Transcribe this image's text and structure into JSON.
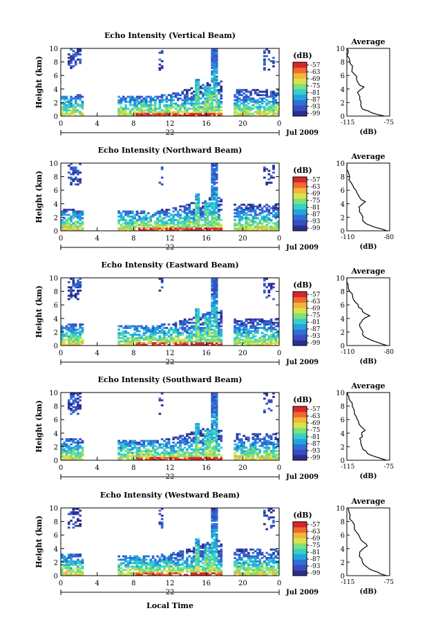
{
  "chart_data": [
    {
      "type": "heatmap",
      "title": "Echo Intensity (Vertical Beam)",
      "ylabel": "Height (km)",
      "y_ticks": [
        "0",
        "2",
        "4",
        "6",
        "8",
        "10"
      ],
      "x_ticks": [
        "0",
        "4",
        "8",
        "12",
        "16",
        "20",
        "0"
      ],
      "date_mid": "22",
      "date_label": "Jul 2009",
      "colorbar_title": "(dB)",
      "colorbar_ticks": [
        "-57",
        "-63",
        "-69",
        "-75",
        "-81",
        "-87",
        "-93",
        "-99"
      ],
      "avg_title": "Average",
      "avg_xticks": [
        "-115",
        "-75"
      ],
      "avg_xlabel": "(dB)",
      "avg_yticks": [
        "0",
        "2",
        "4",
        "6",
        "8",
        "10"
      ],
      "avg_xlim": [
        -115,
        -75
      ],
      "avg_profile": [
        [
          -80,
          0
        ],
        [
          -92,
          0.5
        ],
        [
          -100,
          1
        ],
        [
          -102,
          1.6
        ],
        [
          -103,
          2.5
        ],
        [
          -104,
          3.2
        ],
        [
          -103,
          3.8
        ],
        [
          -99,
          4.3
        ],
        [
          -104,
          4.8
        ],
        [
          -106,
          5.5
        ],
        [
          -108,
          6.2
        ],
        [
          -110,
          7.0
        ],
        [
          -112,
          7.8
        ],
        [
          -113,
          8.6
        ],
        [
          -114,
          9.3
        ],
        [
          -115,
          10
        ]
      ]
    },
    {
      "type": "heatmap",
      "title": "Echo Intensity (Northward Beam)",
      "ylabel": "Height (km)",
      "y_ticks": [
        "0",
        "2",
        "4",
        "6",
        "8",
        "10"
      ],
      "x_ticks": [
        "0",
        "4",
        "8",
        "12",
        "16",
        "20",
        "0"
      ],
      "date_mid": "22",
      "date_label": "Jul 2009",
      "colorbar_title": "(dB)",
      "colorbar_ticks": [
        "-57",
        "-63",
        "-69",
        "-75",
        "-81",
        "-87",
        "-93",
        "-99"
      ],
      "avg_title": "Average",
      "avg_xticks": [
        "-110",
        "-80"
      ],
      "avg_xlabel": "(dB)",
      "avg_yticks": [
        "0",
        "2",
        "4",
        "6",
        "8",
        "10"
      ],
      "avg_xlim": [
        -110,
        -80
      ],
      "avg_profile": [
        [
          -82,
          0
        ],
        [
          -90,
          0.5
        ],
        [
          -96,
          1
        ],
        [
          -99,
          1.6
        ],
        [
          -100,
          2.5
        ],
        [
          -101,
          3.2
        ],
        [
          -100,
          3.8
        ],
        [
          -97,
          4.3
        ],
        [
          -101,
          4.9
        ],
        [
          -103,
          5.6
        ],
        [
          -105,
          6.3
        ],
        [
          -107,
          7.1
        ],
        [
          -108,
          7.9
        ],
        [
          -109,
          8.7
        ],
        [
          -110,
          9.4
        ],
        [
          -110,
          10
        ]
      ]
    },
    {
      "type": "heatmap",
      "title": "Echo Intensity (Eastward Beam)",
      "ylabel": "Height (km)",
      "y_ticks": [
        "0",
        "2",
        "4",
        "6",
        "8",
        "10"
      ],
      "x_ticks": [
        "0",
        "4",
        "8",
        "12",
        "16",
        "20",
        "0"
      ],
      "date_mid": "22",
      "date_label": "Jul 2009",
      "colorbar_title": "(dB)",
      "colorbar_ticks": [
        "-57",
        "-63",
        "-69",
        "-75",
        "-81",
        "-87",
        "-93",
        "-99"
      ],
      "avg_title": "Average",
      "avg_xticks": [
        "-110",
        "-80"
      ],
      "avg_xlabel": "(dB)",
      "avg_yticks": [
        "0",
        "2",
        "4",
        "6",
        "8",
        "10"
      ],
      "avg_xlim": [
        -110,
        -80
      ],
      "avg_profile": [
        [
          -82,
          0
        ],
        [
          -89,
          0.5
        ],
        [
          -95,
          1
        ],
        [
          -99,
          1.6
        ],
        [
          -100,
          2.5
        ],
        [
          -101,
          3.2
        ],
        [
          -99,
          3.8
        ],
        [
          -94,
          4.4
        ],
        [
          -99,
          5.0
        ],
        [
          -102,
          5.7
        ],
        [
          -104,
          6.4
        ],
        [
          -106,
          7.2
        ],
        [
          -108,
          8.0
        ],
        [
          -109,
          8.8
        ],
        [
          -110,
          9.4
        ],
        [
          -110,
          10
        ]
      ]
    },
    {
      "type": "heatmap",
      "title": "Echo Intensity (Southward Beam)",
      "ylabel": "Height (km)",
      "y_ticks": [
        "0",
        "2",
        "4",
        "6",
        "8",
        "10"
      ],
      "x_ticks": [
        "0",
        "4",
        "8",
        "12",
        "16",
        "20",
        "0"
      ],
      "date_mid": "22",
      "date_label": "Jul 2009",
      "colorbar_title": "(dB)",
      "colorbar_ticks": [
        "-57",
        "-63",
        "-69",
        "-75",
        "-81",
        "-87",
        "-93",
        "-99"
      ],
      "avg_title": "Average",
      "avg_xticks": [
        "-115",
        "-75"
      ],
      "avg_xlabel": "(dB)",
      "avg_yticks": [
        "0",
        "2",
        "4",
        "6",
        "8",
        "10"
      ],
      "avg_xlim": [
        -115,
        -75
      ],
      "avg_profile": [
        [
          -78,
          0
        ],
        [
          -88,
          0.5
        ],
        [
          -96,
          1
        ],
        [
          -100,
          1.6
        ],
        [
          -102,
          2.5
        ],
        [
          -103,
          3.2
        ],
        [
          -101,
          3.8
        ],
        [
          -98,
          4.4
        ],
        [
          -102,
          5.0
        ],
        [
          -104,
          5.7
        ],
        [
          -106,
          6.4
        ],
        [
          -108,
          7.2
        ],
        [
          -110,
          8.0
        ],
        [
          -112,
          8.8
        ],
        [
          -113,
          9.4
        ],
        [
          -114,
          10
        ]
      ]
    },
    {
      "type": "heatmap",
      "title": "Echo Intensity (Westward Beam)",
      "ylabel": "Height (km)",
      "y_ticks": [
        "0",
        "2",
        "4",
        "6",
        "8",
        "10"
      ],
      "x_ticks": [
        "0",
        "4",
        "8",
        "12",
        "16",
        "20",
        "0"
      ],
      "date_mid": "22",
      "date_label": "Jul 2009",
      "colorbar_title": "(dB)",
      "colorbar_ticks": [
        "-57",
        "-63",
        "-69",
        "-75",
        "-81",
        "-87",
        "-93",
        "-99"
      ],
      "avg_title": "Average",
      "avg_xticks": [
        "-115",
        "-75"
      ],
      "avg_xlabel": "(dB)",
      "avg_yticks": [
        "0",
        "2",
        "4",
        "6",
        "8",
        "10"
      ],
      "avg_xlim": [
        -115,
        -75
      ],
      "avg_profile": [
        [
          -78,
          0
        ],
        [
          -86,
          0.5
        ],
        [
          -94,
          1
        ],
        [
          -99,
          1.6
        ],
        [
          -101,
          2.5
        ],
        [
          -103,
          3.2
        ],
        [
          -101,
          3.8
        ],
        [
          -96,
          4.4
        ],
        [
          -100,
          5.0
        ],
        [
          -103,
          5.7
        ],
        [
          -106,
          6.4
        ],
        [
          -108,
          7.2
        ],
        [
          -110,
          8.0
        ],
        [
          -112,
          8.8
        ],
        [
          -113,
          9.4
        ],
        [
          -114,
          10
        ]
      ]
    }
  ],
  "xlabel": "Local Time",
  "colormap": [
    "#2a2f8f",
    "#3b4cc0",
    "#2f6fd6",
    "#24a3e0",
    "#35d0c8",
    "#7ee07a",
    "#d8e34a",
    "#f6b43a",
    "#ef6a2c",
    "#d7262b"
  ]
}
